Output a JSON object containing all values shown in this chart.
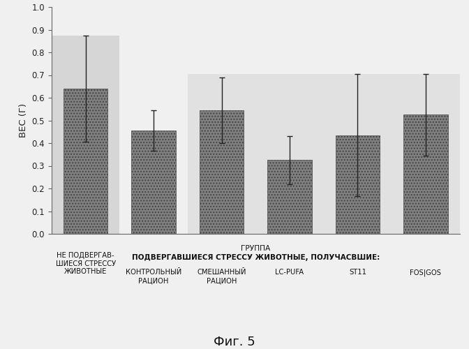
{
  "categories": [
    "НЕ ПОДВЕРГАВ-\nШИЕСЯ СТРЕССУ\nЖИВОТНЫЕ",
    "КОНТРОЛЬНЫЙ\nРАЦИОН",
    "СМЕШАННЫЙ\nРАЦИОН",
    "LC-PUFA",
    "ST11",
    "FOS|GOS"
  ],
  "values": [
    0.64,
    0.455,
    0.545,
    0.325,
    0.435,
    0.525
  ],
  "errors": [
    0.235,
    0.09,
    0.145,
    0.105,
    0.27,
    0.18
  ],
  "bar_color": "#808080",
  "bar_hatch": "....",
  "bg_shade1_color": "#cccccc",
  "bg_shade2_color": "#d8d8d8",
  "paper_color": "#f0f0f0",
  "ylabel": "ВЕС (Г)",
  "ylim": [
    0.0,
    1.0
  ],
  "yticks": [
    0.0,
    0.1,
    0.2,
    0.3,
    0.4,
    0.5,
    0.6,
    0.7,
    0.8,
    0.9,
    1.0
  ],
  "xlabel_group": "ГРУППА",
  "xlabel_stressed": "ПОДВЕРГАВШИЕСЯ СТРЕССУ ЖИВОТНЫЕ, ПОЛУЧАСВШИЕ:",
  "figure_caption": "Фиг. 5"
}
